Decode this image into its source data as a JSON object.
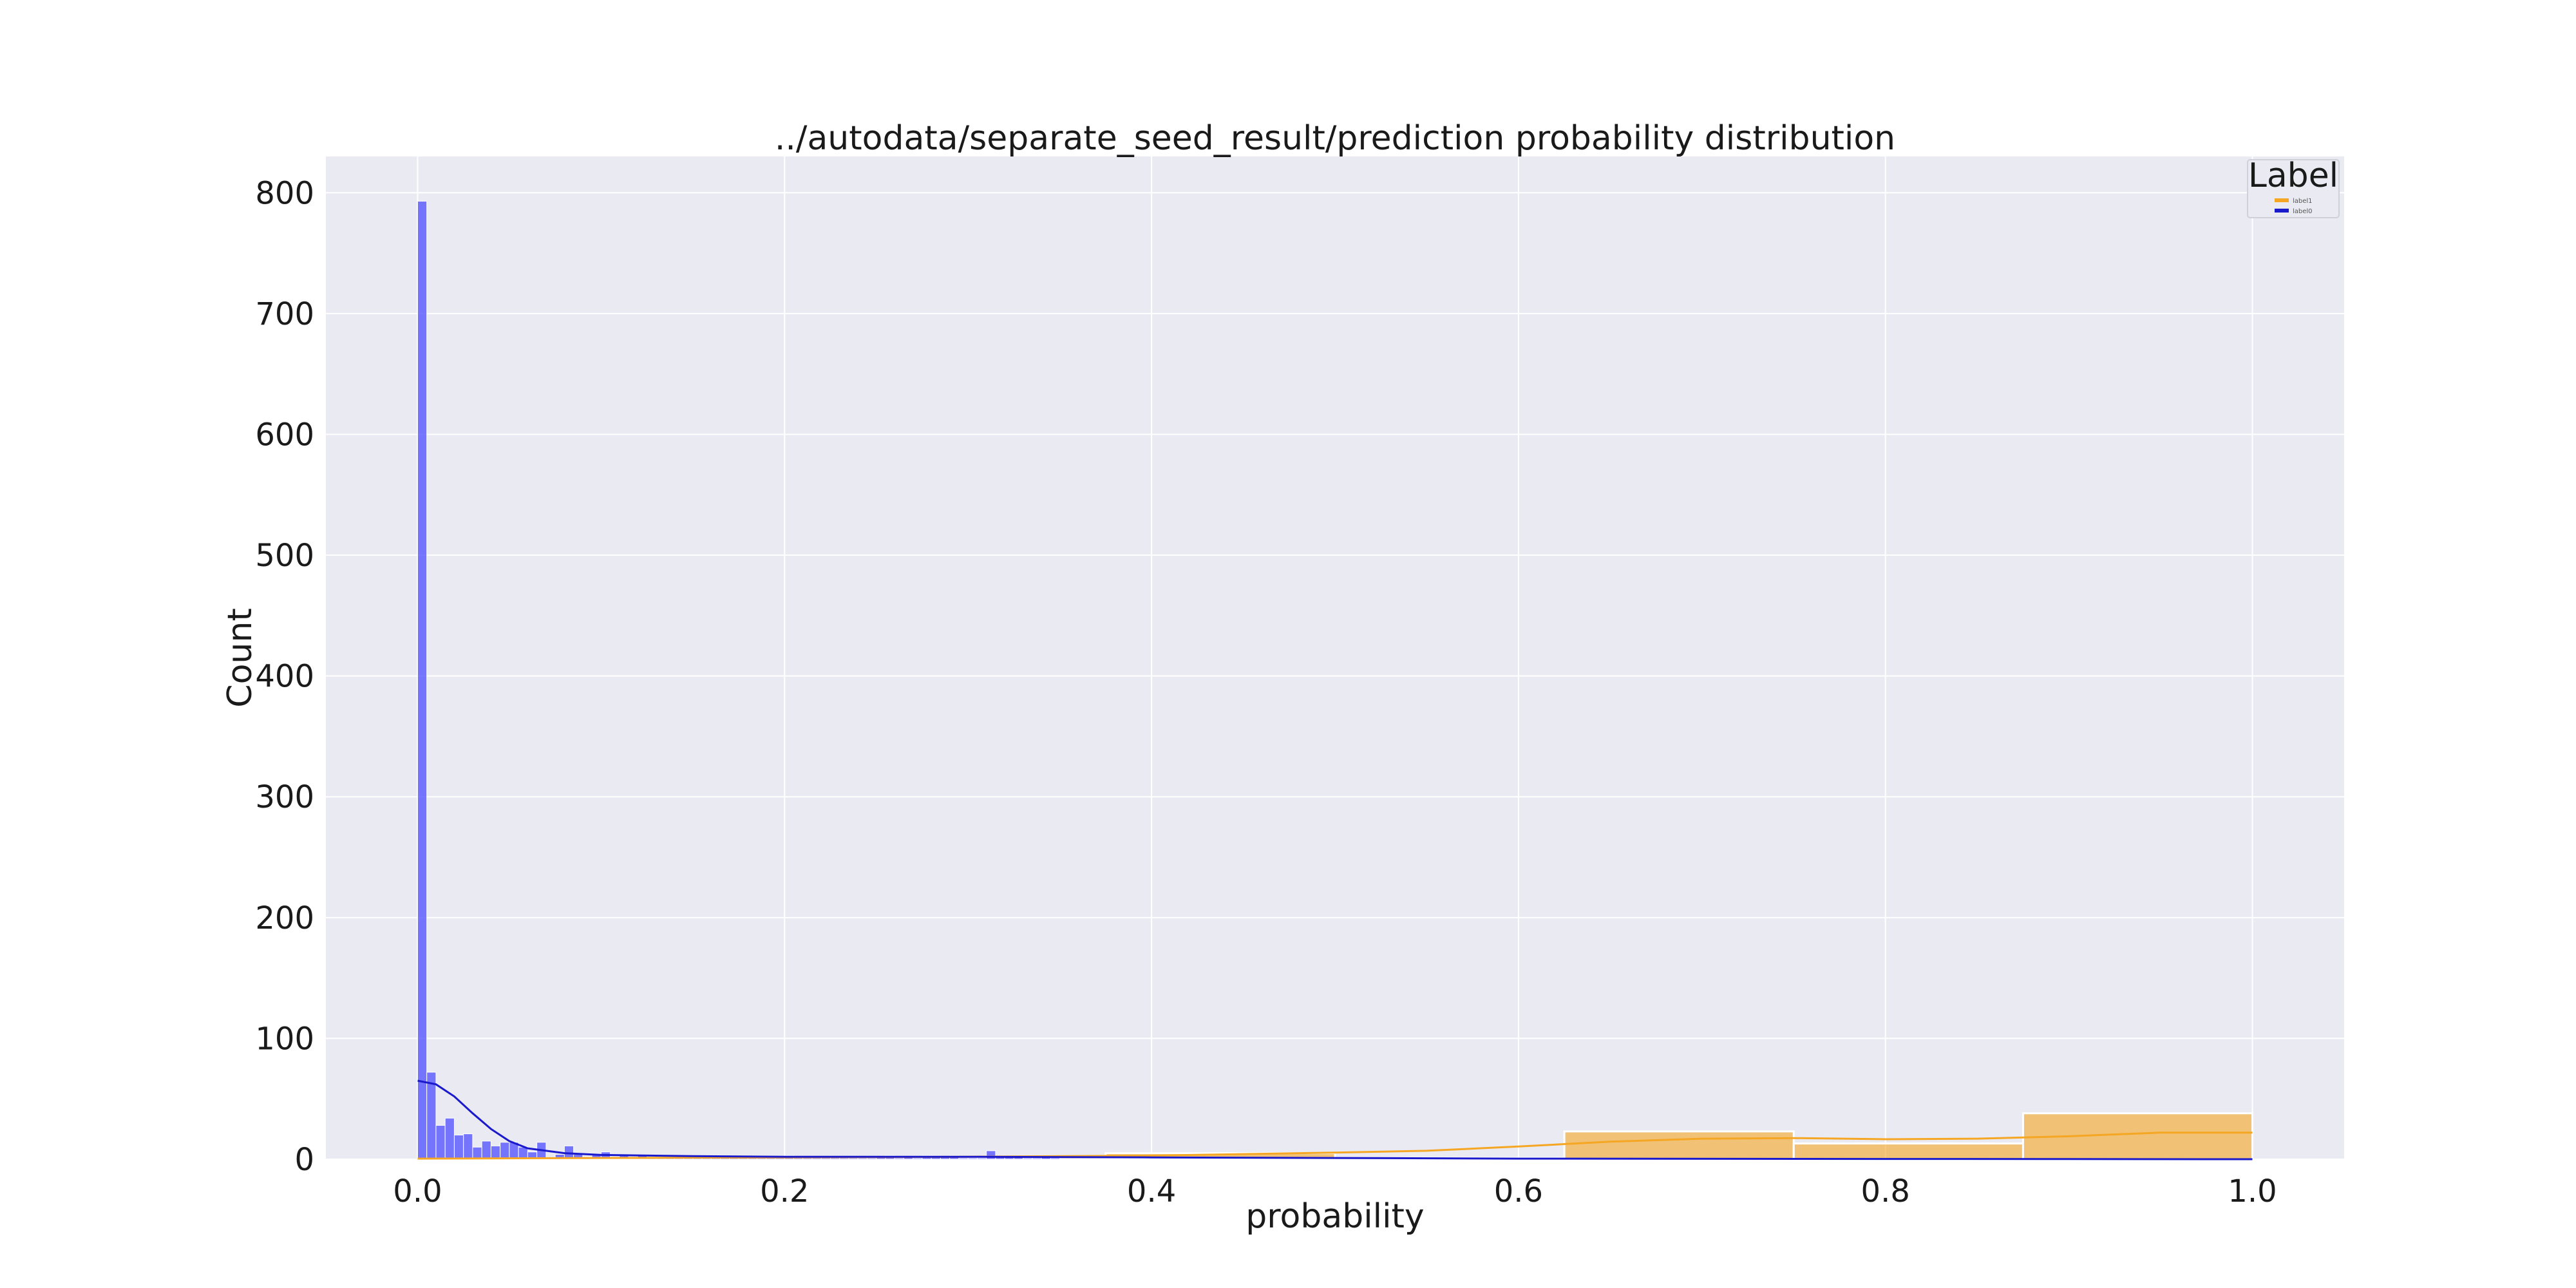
{
  "chart_data": {
    "type": "histogram",
    "title": "../autodata/separate_seed_result/prediction probability distribution",
    "xlabel": "probability",
    "ylabel": "Count",
    "xlim": [
      -0.05,
      1.05
    ],
    "ylim": [
      0,
      830
    ],
    "xticks": [
      0.0,
      0.2,
      0.4,
      0.6,
      0.8,
      1.0
    ],
    "xtick_labels": [
      "0.0",
      "0.2",
      "0.4",
      "0.6",
      "0.8",
      "1.0"
    ],
    "yticks": [
      0,
      100,
      200,
      300,
      400,
      500,
      600,
      700,
      800
    ],
    "ytick_labels": [
      "0",
      "100",
      "200",
      "300",
      "400",
      "500",
      "600",
      "700",
      "800"
    ],
    "grid": true,
    "legend": {
      "title": "Label",
      "position": "top-right"
    },
    "series": [
      {
        "name": "label1",
        "color": "#f5a623",
        "bin_width": 0.125,
        "bins": [
          {
            "x0": 0.0,
            "x1": 0.125,
            "count": 0
          },
          {
            "x0": 0.125,
            "x1": 0.25,
            "count": 1
          },
          {
            "x0": 0.25,
            "x1": 0.375,
            "count": 2
          },
          {
            "x0": 0.375,
            "x1": 0.5,
            "count": 5
          },
          {
            "x0": 0.5,
            "x1": 0.625,
            "count": 1
          },
          {
            "x0": 0.625,
            "x1": 0.75,
            "count": 23
          },
          {
            "x0": 0.75,
            "x1": 0.875,
            "count": 13
          },
          {
            "x0": 0.875,
            "x1": 1.0,
            "count": 38
          }
        ],
        "kde": [
          [
            0.0,
            0.5
          ],
          [
            0.1,
            1
          ],
          [
            0.2,
            1.5
          ],
          [
            0.3,
            2
          ],
          [
            0.4,
            3
          ],
          [
            0.5,
            5.5
          ],
          [
            0.55,
            7
          ],
          [
            0.6,
            10.5
          ],
          [
            0.65,
            14.5
          ],
          [
            0.7,
            17
          ],
          [
            0.75,
            17.5
          ],
          [
            0.8,
            16.5
          ],
          [
            0.85,
            17
          ],
          [
            0.9,
            19
          ],
          [
            0.95,
            22
          ],
          [
            1.0,
            22
          ]
        ]
      },
      {
        "name": "label0",
        "color": "#4c4cff",
        "bin_width": 0.005,
        "bins_start": 0.0,
        "counts": [
          793,
          72,
          28,
          34,
          20,
          21,
          10,
          15,
          11,
          14,
          14,
          10,
          6,
          14,
          0,
          4,
          11,
          4,
          2,
          4,
          6,
          2,
          3,
          2,
          3,
          2,
          2,
          2,
          1,
          1,
          1,
          2,
          1,
          1,
          1,
          1,
          1,
          1,
          1,
          1,
          3,
          1,
          1,
          1,
          1,
          1,
          1,
          1,
          1,
          1,
          2,
          3,
          1,
          2,
          1,
          3,
          3,
          2,
          3,
          1,
          1,
          1,
          7,
          2,
          2,
          2,
          1,
          1,
          2,
          1
        ],
        "kde": [
          [
            0.0,
            65
          ],
          [
            0.01,
            62
          ],
          [
            0.02,
            52
          ],
          [
            0.03,
            38
          ],
          [
            0.04,
            25
          ],
          [
            0.05,
            15
          ],
          [
            0.06,
            9
          ],
          [
            0.08,
            5
          ],
          [
            0.1,
            3.5
          ],
          [
            0.15,
            2.5
          ],
          [
            0.2,
            2
          ],
          [
            0.3,
            2
          ],
          [
            0.4,
            1.5
          ],
          [
            0.5,
            1
          ],
          [
            0.6,
            0.5
          ],
          [
            0.8,
            0.2
          ],
          [
            0.9,
            0.1
          ],
          [
            1.0,
            0
          ]
        ]
      }
    ]
  }
}
